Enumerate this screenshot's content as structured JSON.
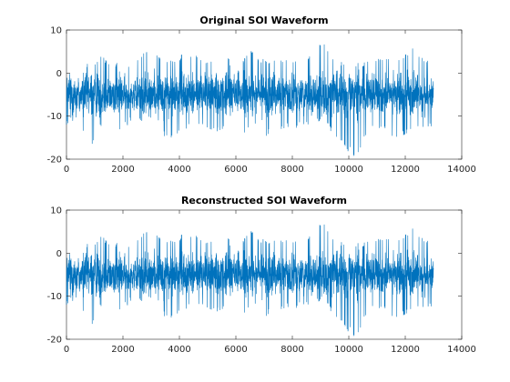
{
  "chart_data": [
    {
      "type": "line",
      "title": "Original SOI Waveform",
      "xlabel": "",
      "ylabel": "",
      "xlim": [
        0,
        14000
      ],
      "ylim": [
        -20,
        10
      ],
      "xticks": [
        0,
        2000,
        4000,
        6000,
        8000,
        10000,
        12000,
        14000
      ],
      "xtick_labels": [
        "0",
        "2000",
        "4000",
        "6000",
        "8000",
        "10000",
        "12000",
        "14000"
      ],
      "yticks": [
        10,
        0,
        -10,
        -20
      ],
      "ytick_labels": [
        "10",
        "0",
        "-10",
        "-20"
      ],
      "grid": false,
      "series": [
        {
          "color": "#0072BD",
          "sample_count": 13000,
          "mean": -5,
          "envelope": [
            {
              "x": 0,
              "min": -12,
              "max": 6
            },
            {
              "x": 200,
              "min": -15,
              "max": 6
            },
            {
              "x": 500,
              "min": -13,
              "max": 5
            },
            {
              "x": 850,
              "min": -18,
              "max": 2
            },
            {
              "x": 1200,
              "min": -13,
              "max": 4
            },
            {
              "x": 1500,
              "min": -14,
              "max": 3
            },
            {
              "x": 2000,
              "min": -13,
              "max": 2
            },
            {
              "x": 2400,
              "min": -12,
              "max": 3
            },
            {
              "x": 2950,
              "min": -11,
              "max": 7
            },
            {
              "x": 3300,
              "min": -14,
              "max": 4
            },
            {
              "x": 3700,
              "min": -16,
              "max": 3
            },
            {
              "x": 4300,
              "min": -13,
              "max": 5
            },
            {
              "x": 4800,
              "min": -12,
              "max": 4
            },
            {
              "x": 5300,
              "min": -14,
              "max": 3
            },
            {
              "x": 5600,
              "min": -13,
              "max": 6
            },
            {
              "x": 6000,
              "min": -17,
              "max": 0
            },
            {
              "x": 6500,
              "min": -12,
              "max": 6
            },
            {
              "x": 7000,
              "min": -15,
              "max": 3
            },
            {
              "x": 7500,
              "min": -13,
              "max": 3
            },
            {
              "x": 8000,
              "min": -13,
              "max": 4
            },
            {
              "x": 8500,
              "min": -12,
              "max": 3
            },
            {
              "x": 9050,
              "min": -11,
              "max": 8
            },
            {
              "x": 9400,
              "min": -14,
              "max": 4
            },
            {
              "x": 9800,
              "min": -17,
              "max": 3
            },
            {
              "x": 10250,
              "min": -20,
              "max": 2
            },
            {
              "x": 10700,
              "min": -14,
              "max": 3
            },
            {
              "x": 11200,
              "min": -13,
              "max": 4
            },
            {
              "x": 11700,
              "min": -16,
              "max": 3
            },
            {
              "x": 12200,
              "min": -13,
              "max": 6
            },
            {
              "x": 12600,
              "min": -14,
              "max": 4
            },
            {
              "x": 13000,
              "min": -12,
              "max": 2
            }
          ]
        }
      ]
    },
    {
      "type": "line",
      "title": "Reconstructed SOI Waveform",
      "xlabel": "",
      "ylabel": "",
      "xlim": [
        0,
        14000
      ],
      "ylim": [
        -20,
        10
      ],
      "xticks": [
        0,
        2000,
        4000,
        6000,
        8000,
        10000,
        12000,
        14000
      ],
      "xtick_labels": [
        "0",
        "2000",
        "4000",
        "6000",
        "8000",
        "10000",
        "12000",
        "14000"
      ],
      "yticks": [
        10,
        0,
        -10,
        -20
      ],
      "ytick_labels": [
        "10",
        "0",
        "-10",
        "-20"
      ],
      "grid": false,
      "series": [
        {
          "color": "#0072BD",
          "sample_count": 13000,
          "mean": -5,
          "envelope": [
            {
              "x": 0,
              "min": -12,
              "max": 6
            },
            {
              "x": 200,
              "min": -15,
              "max": 6
            },
            {
              "x": 500,
              "min": -13,
              "max": 5
            },
            {
              "x": 850,
              "min": -18,
              "max": 2
            },
            {
              "x": 1200,
              "min": -13,
              "max": 4
            },
            {
              "x": 1500,
              "min": -14,
              "max": 3
            },
            {
              "x": 2000,
              "min": -13,
              "max": 2
            },
            {
              "x": 2400,
              "min": -12,
              "max": 3
            },
            {
              "x": 2950,
              "min": -11,
              "max": 7
            },
            {
              "x": 3300,
              "min": -14,
              "max": 4
            },
            {
              "x": 3700,
              "min": -16,
              "max": 3
            },
            {
              "x": 4300,
              "min": -13,
              "max": 5
            },
            {
              "x": 4800,
              "min": -12,
              "max": 4
            },
            {
              "x": 5300,
              "min": -14,
              "max": 3
            },
            {
              "x": 5600,
              "min": -13,
              "max": 6
            },
            {
              "x": 6000,
              "min": -17,
              "max": 0
            },
            {
              "x": 6500,
              "min": -12,
              "max": 6
            },
            {
              "x": 7000,
              "min": -15,
              "max": 3
            },
            {
              "x": 7500,
              "min": -13,
              "max": 3
            },
            {
              "x": 8000,
              "min": -13,
              "max": 4
            },
            {
              "x": 8500,
              "min": -12,
              "max": 3
            },
            {
              "x": 9050,
              "min": -11,
              "max": 8
            },
            {
              "x": 9400,
              "min": -14,
              "max": 4
            },
            {
              "x": 9800,
              "min": -17,
              "max": 3
            },
            {
              "x": 10250,
              "min": -20,
              "max": 2
            },
            {
              "x": 10700,
              "min": -14,
              "max": 3
            },
            {
              "x": 11200,
              "min": -13,
              "max": 4
            },
            {
              "x": 11700,
              "min": -16,
              "max": 3
            },
            {
              "x": 12200,
              "min": -13,
              "max": 6
            },
            {
              "x": 12600,
              "min": -14,
              "max": 4
            },
            {
              "x": 13000,
              "min": -12,
              "max": 2
            }
          ]
        }
      ]
    }
  ]
}
